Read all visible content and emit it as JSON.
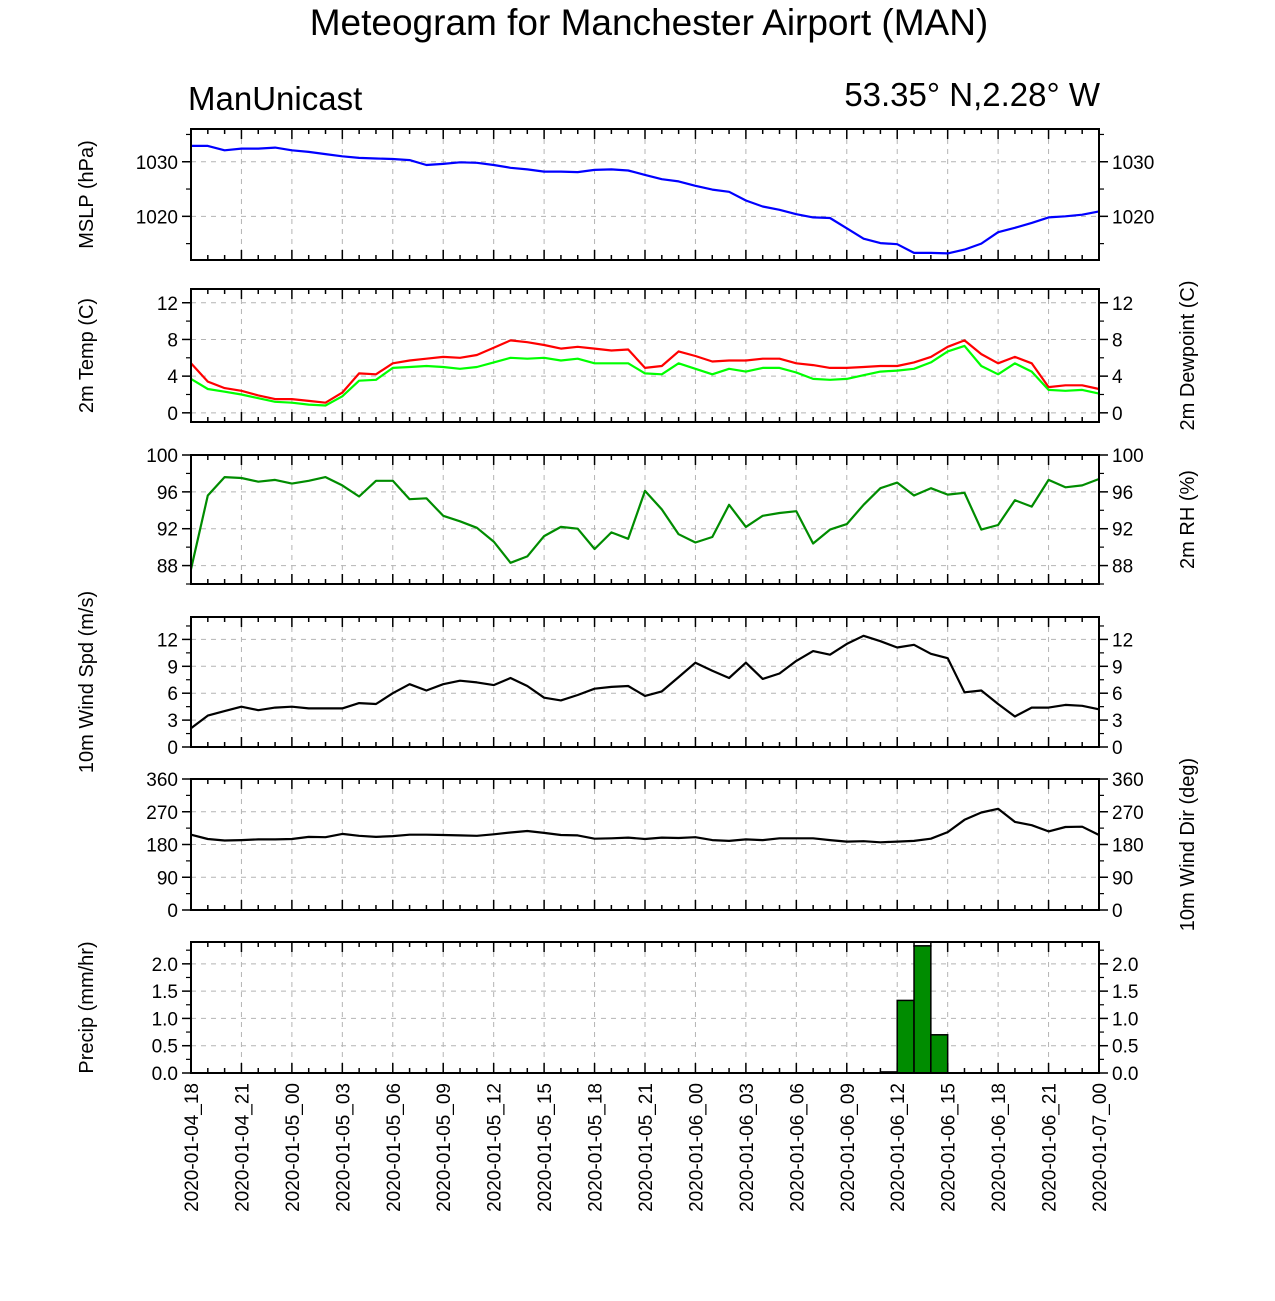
{
  "title": "Meteogram for Manchester Airport (MAN)",
  "subtitle_left": "ManUnicast",
  "subtitle_right": "53.35° N,2.28° W",
  "time_ticks": [
    "2020-01-04_18",
    "2020-01-04_21",
    "2020-01-05_00",
    "2020-01-05_03",
    "2020-01-05_06",
    "2020-01-05_09",
    "2020-01-05_12",
    "2020-01-05_15",
    "2020-01-05_18",
    "2020-01-05_21",
    "2020-01-06_00",
    "2020-01-06_03",
    "2020-01-06_06",
    "2020-01-06_09",
    "2020-01-06_12",
    "2020-01-06_15",
    "2020-01-06_18",
    "2020-01-06_21",
    "2020-01-07_00"
  ],
  "chart_data": [
    {
      "type": "line",
      "left_label": "MSLP (hPa)",
      "right_label": "",
      "ylim": [
        1012,
        1036
      ],
      "ticks": [
        1020,
        1030
      ],
      "tick_labels": [
        "1020",
        "1030"
      ],
      "grid": true,
      "hours_from_start": [
        0,
        1,
        2,
        3,
        4,
        5,
        6,
        7,
        8,
        9,
        10,
        11,
        12,
        13,
        14,
        15,
        16,
        17,
        18,
        19,
        20,
        21,
        22,
        23,
        24,
        25,
        26,
        27,
        28,
        29,
        30,
        31,
        32,
        33,
        34,
        35,
        36,
        37,
        38,
        39,
        40,
        41,
        42,
        43,
        44,
        45,
        46,
        47,
        48,
        49,
        50,
        51,
        52,
        53,
        54
      ],
      "series": [
        {
          "color": "#0000ff",
          "values": [
            1032.9,
            1032.9,
            1032.1,
            1032.4,
            1032.4,
            1032.6,
            1032.1,
            1031.8,
            1031.4,
            1031.0,
            1030.7,
            1030.6,
            1030.5,
            1030.3,
            1029.4,
            1029.6,
            1029.9,
            1029.8,
            1029.4,
            1028.9,
            1028.6,
            1028.2,
            1028.2,
            1028.1,
            1028.5,
            1028.6,
            1028.4,
            1027.6,
            1026.8,
            1026.4,
            1025.6,
            1024.9,
            1024.5,
            1022.9,
            1021.8,
            1021.2,
            1020.4,
            1019.8,
            1019.7,
            1017.8,
            1015.9,
            1015.1,
            1014.9,
            1013.3,
            1013.3,
            1013.2,
            1013.9,
            1015.0,
            1017.1,
            1017.9,
            1018.8,
            1019.8,
            1020.0,
            1020.3,
            1020.9
          ]
        }
      ]
    },
    {
      "type": "line",
      "left_label": "2m Temp (C)",
      "right_label": "2m Dewpoint (C)",
      "ylim": [
        -1,
        13.5
      ],
      "ticks": [
        0,
        4,
        8,
        12
      ],
      "tick_labels": [
        "0",
        "4",
        "8",
        "12"
      ],
      "grid": true,
      "hours_from_start": [
        0,
        1,
        2,
        3,
        4,
        5,
        6,
        7,
        8,
        9,
        10,
        11,
        12,
        13,
        14,
        15,
        16,
        17,
        18,
        19,
        20,
        21,
        22,
        23,
        24,
        25,
        26,
        27,
        28,
        29,
        30,
        31,
        32,
        33,
        34,
        35,
        36,
        37,
        38,
        39,
        40,
        41,
        42,
        43,
        44,
        45,
        46,
        47,
        48,
        49,
        50,
        51,
        52,
        53,
        54
      ],
      "series": [
        {
          "color": "#ff0000",
          "values": [
            5.4,
            3.4,
            2.7,
            2.4,
            1.9,
            1.5,
            1.5,
            1.3,
            1.1,
            2.2,
            4.3,
            4.2,
            5.4,
            5.7,
            5.9,
            6.1,
            6.0,
            6.3,
            7.1,
            7.9,
            7.7,
            7.4,
            7.0,
            7.2,
            7.0,
            6.8,
            6.9,
            4.9,
            5.1,
            6.7,
            6.2,
            5.6,
            5.7,
            5.7,
            5.9,
            5.9,
            5.4,
            5.2,
            4.9,
            4.9,
            5.0,
            5.1,
            5.1,
            5.5,
            6.1,
            7.2,
            7.9,
            6.4,
            5.4,
            6.1,
            5.4,
            2.8,
            3.0,
            3.0,
            2.6
          ]
        },
        {
          "color": "#00ff00",
          "values": [
            3.7,
            2.6,
            2.3,
            2.0,
            1.6,
            1.2,
            1.1,
            0.9,
            0.8,
            1.8,
            3.5,
            3.6,
            4.9,
            5.0,
            5.1,
            5.0,
            4.8,
            5.0,
            5.5,
            6.0,
            5.9,
            6.0,
            5.7,
            5.9,
            5.4,
            5.4,
            5.4,
            4.3,
            4.2,
            5.4,
            4.8,
            4.2,
            4.8,
            4.5,
            4.9,
            4.9,
            4.4,
            3.7,
            3.6,
            3.7,
            4.1,
            4.5,
            4.6,
            4.8,
            5.5,
            6.7,
            7.3,
            5.1,
            4.2,
            5.4,
            4.5,
            2.5,
            2.4,
            2.5,
            2.1
          ]
        }
      ]
    },
    {
      "type": "line",
      "left_label": "",
      "right_label": "2m RH (%)",
      "ylim": [
        86,
        100
      ],
      "ticks": [
        88,
        92,
        96,
        100
      ],
      "tick_labels": [
        "88",
        "92",
        "96",
        "100"
      ],
      "grid": true,
      "hours_from_start": [
        0,
        1,
        2,
        3,
        4,
        5,
        6,
        7,
        8,
        9,
        10,
        11,
        12,
        13,
        14,
        15,
        16,
        17,
        18,
        19,
        20,
        21,
        22,
        23,
        24,
        25,
        26,
        27,
        28,
        29,
        30,
        31,
        32,
        33,
        34,
        35,
        36,
        37,
        38,
        39,
        40,
        41,
        42,
        43,
        44,
        45,
        46,
        47,
        48,
        49,
        50,
        51,
        52,
        53,
        54
      ],
      "series": [
        {
          "color": "#008c00",
          "values": [
            87.6,
            95.6,
            97.6,
            97.5,
            97.1,
            97.3,
            96.9,
            97.2,
            97.6,
            96.7,
            95.5,
            97.2,
            97.2,
            95.2,
            95.3,
            93.4,
            92.8,
            92.1,
            90.6,
            88.3,
            89.0,
            91.2,
            92.2,
            92.0,
            89.8,
            91.6,
            90.9,
            96.1,
            94.1,
            91.4,
            90.5,
            91.1,
            94.6,
            92.2,
            93.4,
            93.7,
            93.9,
            90.4,
            91.9,
            92.5,
            94.6,
            96.4,
            97.0,
            95.6,
            96.4,
            95.7,
            95.9,
            91.9,
            92.4,
            95.1,
            94.4,
            97.3,
            96.5,
            96.7,
            97.4
          ]
        }
      ]
    },
    {
      "type": "line",
      "left_label": "10m Wind Spd (m/s)",
      "right_label": "",
      "ylim": [
        0,
        14.5
      ],
      "ticks": [
        0,
        3,
        6,
        9,
        12
      ],
      "tick_labels": [
        "0",
        "3",
        "6",
        "9",
        "12"
      ],
      "grid": true,
      "hours_from_start": [
        0,
        1,
        2,
        3,
        4,
        5,
        6,
        7,
        8,
        9,
        10,
        11,
        12,
        13,
        14,
        15,
        16,
        17,
        18,
        19,
        20,
        21,
        22,
        23,
        24,
        25,
        26,
        27,
        28,
        29,
        30,
        31,
        32,
        33,
        34,
        35,
        36,
        37,
        38,
        39,
        40,
        41,
        42,
        43,
        44,
        45,
        46,
        47,
        48,
        49,
        50,
        51,
        52,
        53,
        54
      ],
      "series": [
        {
          "color": "#000000",
          "values": [
            2.1,
            3.5,
            4.0,
            4.5,
            4.1,
            4.4,
            4.5,
            4.3,
            4.3,
            4.3,
            4.9,
            4.8,
            6.0,
            7.0,
            6.3,
            7.0,
            7.4,
            7.2,
            6.9,
            7.7,
            6.8,
            5.5,
            5.2,
            5.8,
            6.5,
            6.7,
            6.8,
            5.7,
            6.2,
            7.8,
            9.4,
            8.5,
            7.7,
            9.4,
            7.6,
            8.2,
            9.6,
            10.7,
            10.3,
            11.5,
            12.4,
            11.8,
            11.1,
            11.4,
            10.4,
            9.9,
            6.1,
            6.3,
            4.8,
            3.4,
            4.4,
            4.4,
            4.7,
            4.6,
            4.2
          ]
        }
      ]
    },
    {
      "type": "line",
      "left_label": "",
      "right_label": "10m Wind Dir (deg)",
      "ylim": [
        0,
        360
      ],
      "ticks": [
        0,
        90,
        180,
        270,
        360
      ],
      "tick_labels": [
        "0",
        "90",
        "180",
        "270",
        "360"
      ],
      "grid": true,
      "hours_from_start": [
        0,
        1,
        2,
        3,
        4,
        5,
        6,
        7,
        8,
        9,
        10,
        11,
        12,
        13,
        14,
        15,
        16,
        17,
        18,
        19,
        20,
        21,
        22,
        23,
        24,
        25,
        26,
        27,
        28,
        29,
        30,
        31,
        32,
        33,
        34,
        35,
        36,
        37,
        38,
        39,
        40,
        41,
        42,
        43,
        44,
        45,
        46,
        47,
        48,
        49,
        50,
        51,
        52,
        53,
        54
      ],
      "series": [
        {
          "color": "#000000",
          "values": [
            207,
            195,
            191,
            192,
            194,
            194,
            195,
            201,
            200,
            209,
            204,
            201,
            203,
            207,
            207,
            206,
            205,
            204,
            208,
            213,
            217,
            212,
            206,
            205,
            196,
            197,
            199,
            195,
            199,
            198,
            200,
            192,
            190,
            194,
            192,
            197,
            197,
            197,
            192,
            188,
            189,
            186,
            188,
            190,
            196,
            214,
            248,
            268,
            278,
            242,
            233,
            216,
            228,
            229,
            206
          ]
        }
      ]
    },
    {
      "type": "bar",
      "left_label": "Precip (mm/hr)",
      "right_label": "",
      "ylim": [
        0,
        2.4
      ],
      "ticks": [
        0,
        0.5,
        1,
        1.5,
        2
      ],
      "tick_labels": [
        "0.0",
        "0.5",
        "1.0",
        "1.5",
        "2.0"
      ],
      "grid": true,
      "bar_color": "#008c00",
      "bars": [
        {
          "hours_from_start": 41.5,
          "value": 0.02
        },
        {
          "hours_from_start": 42.5,
          "value": 1.33
        },
        {
          "hours_from_start": 43.5,
          "value": 2.33
        },
        {
          "hours_from_start": 44.5,
          "value": 0.7
        }
      ]
    }
  ]
}
